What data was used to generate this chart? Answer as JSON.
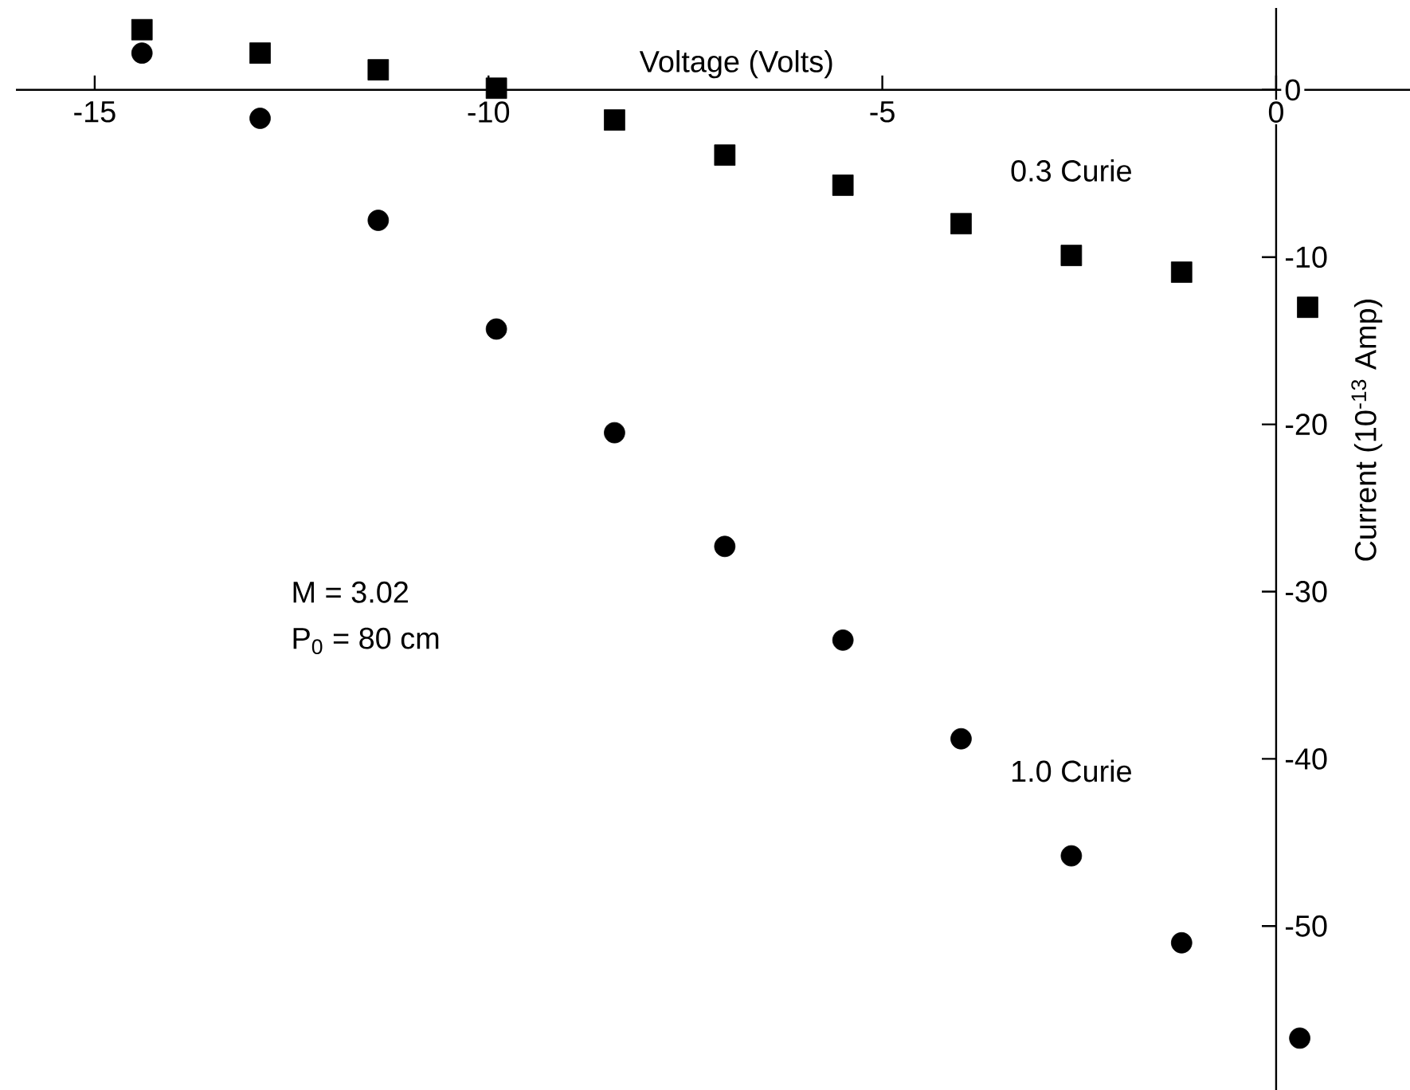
{
  "chart_data": {
    "type": "scatter",
    "xlabel": "Voltage (Volts)",
    "ylabel": "Current (10$^{-13}$ Amp)",
    "annotations": [
      "M = 3.02",
      "P$_{0}$ = 80 cm"
    ],
    "xlim": [
      -16.0,
      1.7
    ],
    "ylim": [
      -59.8,
      4.9
    ],
    "xticks": [
      -15,
      -10,
      -5,
      0
    ],
    "yticks": [
      0,
      -10,
      -20,
      -30,
      -40,
      -50
    ],
    "grid": false,
    "legend": false,
    "series": [
      {
        "name": "0.3 Curie",
        "color": "#000000",
        "marker": "square",
        "x": [
          -14.4,
          -12.9,
          -11.4,
          -9.9,
          -8.4,
          -7.0,
          -5.5,
          -4.0,
          -2.6,
          -1.2,
          0.4
        ],
        "values": [
          3.6,
          2.2,
          1.2,
          0.1,
          -1.8,
          -3.9,
          -5.7,
          -8.0,
          -9.9,
          -10.9,
          -13.0
        ]
      },
      {
        "name": "1.0 Curie",
        "color": "#000000",
        "marker": "circle",
        "x": [
          -14.4,
          -12.9,
          -11.4,
          -9.9,
          -8.4,
          -7.0,
          -5.5,
          -4.0,
          -2.6,
          -1.2,
          0.3
        ],
        "values": [
          2.2,
          -1.7,
          -7.8,
          -14.3,
          -20.5,
          -27.3,
          -32.9,
          -38.8,
          -45.8,
          -51.0,
          -56.7
        ]
      }
    ]
  }
}
